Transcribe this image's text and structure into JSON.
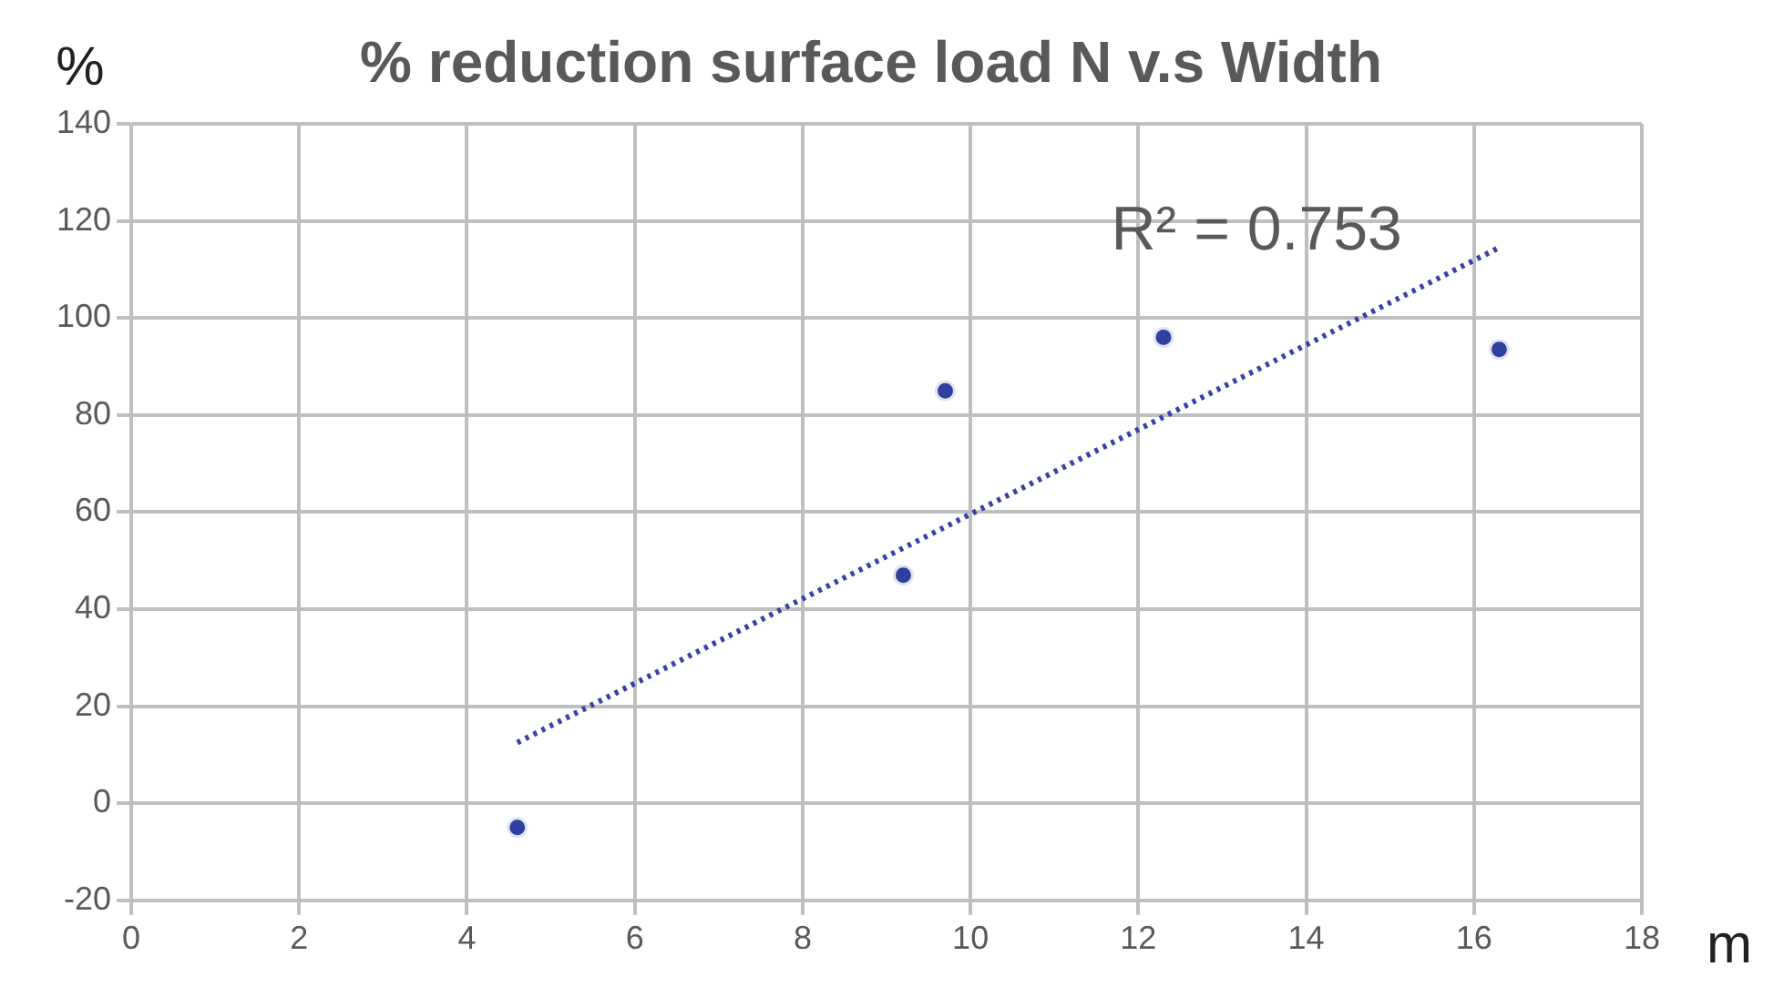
{
  "chart_data": {
    "type": "scatter",
    "title": "% reduction surface load N v.s Width",
    "xlabel": "m",
    "ylabel": "%",
    "xlim": [
      0,
      18
    ],
    "xticks": [
      0,
      2,
      4,
      6,
      8,
      10,
      12,
      14,
      16,
      18
    ],
    "ylim": [
      -20,
      140
    ],
    "yticks": [
      -20,
      0,
      20,
      40,
      60,
      80,
      100,
      120,
      140
    ],
    "grid": true,
    "legend": false,
    "marker": "circle",
    "series": [
      {
        "color": "#2e3f9e",
        "x": [
          4.6,
          9.2,
          9.7,
          12.3,
          16.3
        ],
        "values": [
          -5,
          47,
          85,
          96,
          93.5
        ]
      },
      {
        "type": "line",
        "color": "#3b3fa8",
        "line_style": "dotted",
        "marker": "none",
        "x": [
          4.6,
          16.3
        ],
        "values": [
          12.5,
          114.5
        ]
      }
    ],
    "annotations": [
      "R² = 0.753"
    ]
  }
}
